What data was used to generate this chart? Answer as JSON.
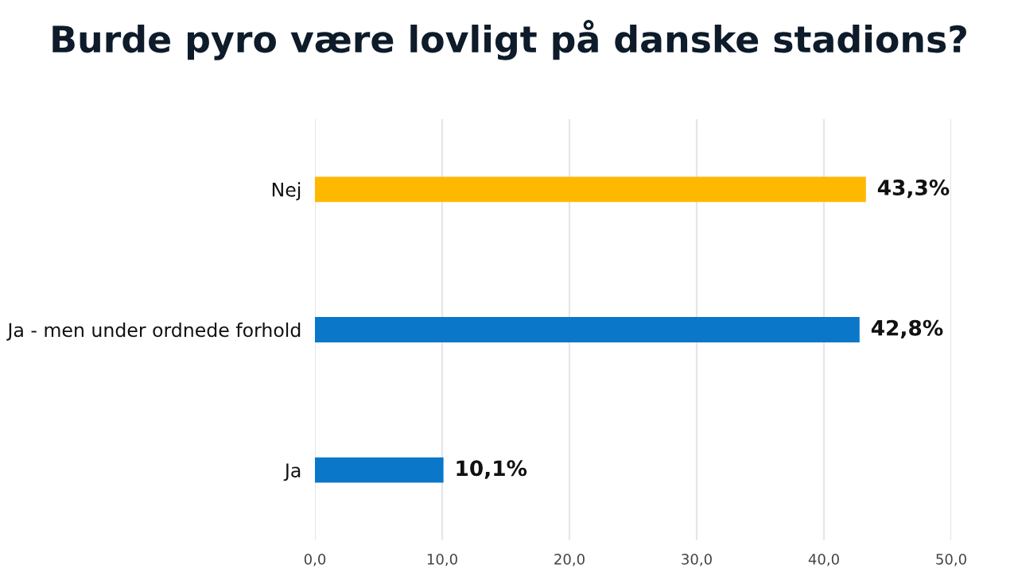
{
  "chart_data": {
    "type": "bar",
    "orientation": "horizontal",
    "title": "Burde pyro være lovligt på danske stadions?",
    "categories": [
      "Nej",
      "Ja - men under ordnede forhold",
      "Ja"
    ],
    "values": [
      43.3,
      42.8,
      10.1
    ],
    "colors": [
      "#ffb800",
      "#0a77c9",
      "#0a77c9"
    ],
    "value_labels": [
      "43,3%",
      "42,8%",
      "10,1%"
    ],
    "xlim": [
      0,
      50
    ],
    "xticks": [
      {
        "value": 0,
        "label": "0,0"
      },
      {
        "value": 10,
        "label": "10,0"
      },
      {
        "value": 20,
        "label": "20,0"
      },
      {
        "value": 30,
        "label": "30,0"
      },
      {
        "value": 40,
        "label": "40,0"
      },
      {
        "value": 50,
        "label": "50,0"
      }
    ],
    "grid": "x"
  }
}
